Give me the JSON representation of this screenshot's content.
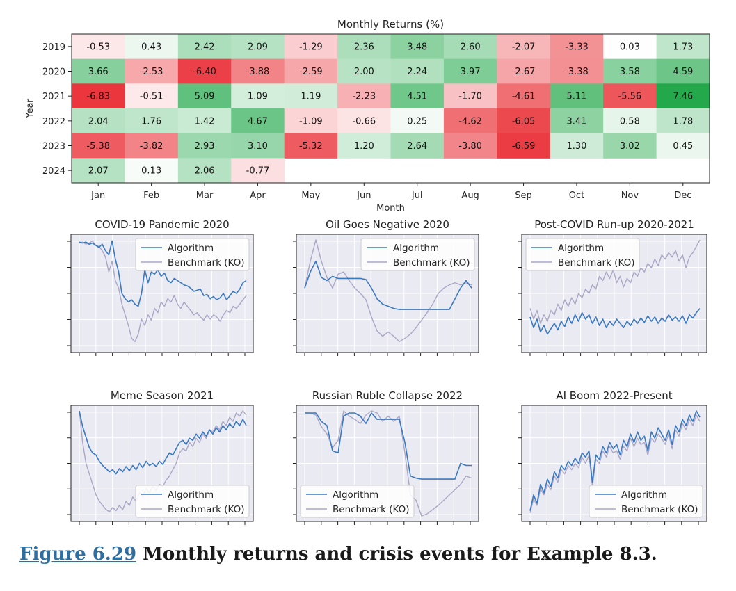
{
  "caption": {
    "figure_link": "Figure 6.29",
    "text": " Monthly returns and crisis events for Example 8.3."
  },
  "colors": {
    "algorithm": "#3a78c0",
    "benchmark": "#a9a6c6",
    "positive": "#22a84a",
    "negative": "#e8252c",
    "panel_bg": "#eaeaf2"
  },
  "chart_data": [
    {
      "type": "heatmap",
      "title": "Monthly Returns (%)",
      "xlabel": "Month",
      "ylabel": "Year",
      "x": [
        "Jan",
        "Feb",
        "Mar",
        "Apr",
        "May",
        "Jun",
        "Jul",
        "Aug",
        "Sep",
        "Oct",
        "Nov",
        "Dec"
      ],
      "y": [
        "2019",
        "2020",
        "2021",
        "2022",
        "2023",
        "2024"
      ],
      "values": [
        [
          "-0.53",
          "0.43",
          "2.42",
          "2.09",
          "-1.29",
          "2.36",
          "3.48",
          "2.60",
          "-2.07",
          "-3.33",
          "0.03",
          "1.73"
        ],
        [
          "3.66",
          "-2.53",
          "-6.40",
          "-3.88",
          "-2.59",
          "2.00",
          "2.24",
          "3.97",
          "-2.67",
          "-3.38",
          "3.58",
          "4.59"
        ],
        [
          "-6.83",
          "-0.51",
          "5.09",
          "1.09",
          "1.19",
          "-2.23",
          "4.51",
          "-1.70",
          "-4.61",
          "5.11",
          "-5.56",
          "7.46"
        ],
        [
          "2.04",
          "1.76",
          "1.42",
          "4.67",
          "-1.09",
          "-0.66",
          "0.25",
          "-4.62",
          "-6.05",
          "3.41",
          "0.58",
          "1.78"
        ],
        [
          "-5.38",
          "-3.82",
          "2.93",
          "3.10",
          "-5.32",
          "1.20",
          "2.64",
          "-3.80",
          "-6.59",
          "1.30",
          "3.02",
          "0.45"
        ],
        [
          "2.07",
          "0.13",
          "2.06",
          "-0.77",
          null,
          null,
          null,
          null,
          null,
          null,
          null,
          null
        ]
      ],
      "color_scale": {
        "min": -7.5,
        "max": 7.5,
        "negative": "red",
        "positive": "green"
      }
    },
    {
      "type": "line",
      "title": "COVID-19 Pandemic 2020",
      "legend": "top-right",
      "series": [
        {
          "name": "Algorithm",
          "values": [
            0.98,
            0.97,
            0.98,
            0.96,
            0.97,
            0.95,
            0.93,
            0.96,
            0.9,
            0.86,
            0.99,
            0.82,
            0.7,
            0.5,
            0.45,
            0.42,
            0.44,
            0.4,
            0.38,
            0.5,
            0.72,
            0.6,
            0.7,
            0.68,
            0.72,
            0.66,
            0.69,
            0.62,
            0.6,
            0.64,
            0.62,
            0.6,
            0.58,
            0.57,
            0.55,
            0.52,
            0.53,
            0.54,
            0.48,
            0.49,
            0.45,
            0.47,
            0.44,
            0.46,
            0.5,
            0.44,
            0.48,
            0.52,
            0.5,
            0.54,
            0.6,
            0.62
          ]
        },
        {
          "name": "Benchmark (KO)",
          "values": [
            0.97,
            0.98,
            0.96,
            0.97,
            0.99,
            0.95,
            0.94,
            0.9,
            0.84,
            0.7,
            0.8,
            0.62,
            0.55,
            0.4,
            0.3,
            0.2,
            0.08,
            0.05,
            0.12,
            0.26,
            0.2,
            0.3,
            0.25,
            0.36,
            0.32,
            0.42,
            0.38,
            0.45,
            0.42,
            0.48,
            0.4,
            0.36,
            0.42,
            0.38,
            0.34,
            0.3,
            0.32,
            0.28,
            0.25,
            0.3,
            0.26,
            0.3,
            0.28,
            0.24,
            0.3,
            0.34,
            0.32,
            0.38,
            0.36,
            0.4,
            0.44,
            0.48
          ]
        }
      ]
    },
    {
      "type": "line",
      "title": "Oil Goes Negative 2020",
      "legend": "top-right",
      "series": [
        {
          "name": "Algorithm",
          "values": [
            0.55,
            0.7,
            0.8,
            0.65,
            0.62,
            0.66,
            0.64,
            0.64,
            0.64,
            0.64,
            0.64,
            0.63,
            0.55,
            0.45,
            0.4,
            0.38,
            0.36,
            0.35,
            0.35,
            0.35,
            0.35,
            0.35,
            0.35,
            0.35,
            0.35,
            0.35,
            0.35,
            0.45,
            0.55,
            0.62,
            0.55
          ]
        },
        {
          "name": "Benchmark (KO)",
          "values": [
            0.55,
            0.8,
            1.0,
            0.8,
            0.65,
            0.55,
            0.68,
            0.7,
            0.62,
            0.55,
            0.5,
            0.44,
            0.28,
            0.15,
            0.1,
            0.14,
            0.1,
            0.05,
            0.08,
            0.12,
            0.18,
            0.25,
            0.32,
            0.4,
            0.5,
            0.55,
            0.58,
            0.6,
            0.58,
            0.6,
            0.58
          ]
        }
      ]
    },
    {
      "type": "line",
      "title": "Post-COVID Run-up 2020-2021",
      "legend": "top-left",
      "series": [
        {
          "name": "Algorithm",
          "values": [
            0.28,
            0.18,
            0.26,
            0.14,
            0.2,
            0.12,
            0.17,
            0.22,
            0.16,
            0.24,
            0.19,
            0.28,
            0.22,
            0.3,
            0.24,
            0.32,
            0.26,
            0.3,
            0.22,
            0.28,
            0.2,
            0.26,
            0.18,
            0.24,
            0.2,
            0.26,
            0.22,
            0.18,
            0.24,
            0.2,
            0.26,
            0.22,
            0.27,
            0.23,
            0.29,
            0.24,
            0.28,
            0.22,
            0.27,
            0.24,
            0.3,
            0.25,
            0.28,
            0.24,
            0.29,
            0.22,
            0.3,
            0.27,
            0.32,
            0.36
          ]
        },
        {
          "name": "Benchmark (KO)",
          "values": [
            0.36,
            0.26,
            0.34,
            0.22,
            0.3,
            0.24,
            0.34,
            0.3,
            0.4,
            0.34,
            0.44,
            0.38,
            0.46,
            0.4,
            0.5,
            0.46,
            0.54,
            0.5,
            0.58,
            0.54,
            0.66,
            0.62,
            0.7,
            0.64,
            0.72,
            0.6,
            0.66,
            0.56,
            0.64,
            0.6,
            0.7,
            0.66,
            0.74,
            0.7,
            0.78,
            0.74,
            0.82,
            0.76,
            0.86,
            0.82,
            0.88,
            0.84,
            0.9,
            0.8,
            0.86,
            0.74,
            0.84,
            0.88,
            0.94,
            1.0
          ]
        }
      ]
    },
    {
      "type": "line",
      "title": "Meme Season 2021",
      "legend": "bottom-right",
      "series": [
        {
          "name": "Algorithm",
          "values": [
            1.0,
            0.85,
            0.75,
            0.65,
            0.6,
            0.58,
            0.52,
            0.48,
            0.45,
            0.42,
            0.44,
            0.4,
            0.45,
            0.42,
            0.47,
            0.43,
            0.48,
            0.44,
            0.5,
            0.46,
            0.52,
            0.48,
            0.5,
            0.47,
            0.52,
            0.49,
            0.55,
            0.6,
            0.58,
            0.64,
            0.7,
            0.72,
            0.68,
            0.74,
            0.72,
            0.78,
            0.74,
            0.8,
            0.76,
            0.82,
            0.78,
            0.84,
            0.8,
            0.86,
            0.82,
            0.88,
            0.84,
            0.9,
            0.86,
            0.92,
            0.86
          ]
        },
        {
          "name": "Benchmark (KO)",
          "values": [
            1.0,
            0.7,
            0.5,
            0.4,
            0.3,
            0.2,
            0.14,
            0.1,
            0.06,
            0.04,
            0.08,
            0.05,
            0.1,
            0.06,
            0.14,
            0.1,
            0.18,
            0.14,
            0.22,
            0.18,
            0.26,
            0.22,
            0.28,
            0.24,
            0.3,
            0.28,
            0.34,
            0.38,
            0.44,
            0.5,
            0.6,
            0.64,
            0.62,
            0.7,
            0.66,
            0.74,
            0.7,
            0.78,
            0.74,
            0.82,
            0.8,
            0.86,
            0.82,
            0.9,
            0.86,
            0.94,
            0.9,
            0.98,
            0.95,
            1.0,
            0.96
          ]
        }
      ]
    },
    {
      "type": "line",
      "title": "Russian Ruble Collapse 2022",
      "legend": "bottom-left",
      "series": [
        {
          "name": "Algorithm",
          "values": [
            0.98,
            0.98,
            0.98,
            0.9,
            0.86,
            0.62,
            0.6,
            0.95,
            0.98,
            0.98,
            0.95,
            0.88,
            0.98,
            0.92,
            0.92,
            0.92,
            0.92,
            0.92,
            0.7,
            0.38,
            0.36,
            0.35,
            0.35,
            0.35,
            0.35,
            0.35,
            0.35,
            0.35,
            0.5,
            0.48,
            0.48
          ]
        },
        {
          "name": "Benchmark (KO)",
          "values": [
            0.98,
            0.98,
            0.96,
            0.85,
            0.78,
            0.65,
            0.72,
            1.0,
            0.95,
            0.92,
            0.88,
            0.96,
            1.0,
            0.98,
            0.9,
            0.95,
            0.9,
            0.95,
            0.6,
            0.2,
            0.15,
            0.0,
            0.02,
            0.06,
            0.1,
            0.15,
            0.2,
            0.25,
            0.3,
            0.38,
            0.36
          ]
        }
      ]
    },
    {
      "type": "line",
      "title": "AI Boom 2022-Present",
      "legend": "bottom-right",
      "series": [
        {
          "name": "Algorithm",
          "values": [
            0.05,
            0.2,
            0.12,
            0.3,
            0.22,
            0.35,
            0.28,
            0.42,
            0.36,
            0.48,
            0.44,
            0.52,
            0.48,
            0.55,
            0.5,
            0.6,
            0.56,
            0.62,
            0.32,
            0.58,
            0.54,
            0.66,
            0.6,
            0.7,
            0.64,
            0.68,
            0.58,
            0.72,
            0.66,
            0.78,
            0.7,
            0.8,
            0.72,
            0.76,
            0.62,
            0.8,
            0.74,
            0.84,
            0.78,
            0.72,
            0.82,
            0.68,
            0.86,
            0.8,
            0.92,
            0.86,
            0.96,
            0.9,
            1.0,
            0.94
          ]
        },
        {
          "name": "Benchmark (KO)",
          "values": [
            0.03,
            0.16,
            0.1,
            0.26,
            0.2,
            0.3,
            0.25,
            0.38,
            0.32,
            0.44,
            0.4,
            0.48,
            0.44,
            0.5,
            0.46,
            0.56,
            0.5,
            0.58,
            0.28,
            0.54,
            0.5,
            0.62,
            0.56,
            0.66,
            0.6,
            0.62,
            0.54,
            0.66,
            0.62,
            0.74,
            0.66,
            0.74,
            0.68,
            0.7,
            0.58,
            0.74,
            0.7,
            0.78,
            0.74,
            0.68,
            0.78,
            0.64,
            0.82,
            0.76,
            0.88,
            0.82,
            0.92,
            0.86,
            0.96,
            0.9
          ]
        }
      ]
    }
  ]
}
